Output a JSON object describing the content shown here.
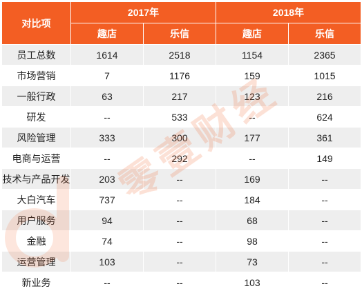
{
  "table": {
    "corner_label": "对比项",
    "years": [
      "2017年",
      "2018年"
    ],
    "subheaders": [
      "趣店",
      "乐信",
      "趣店",
      "乐信"
    ],
    "rows": [
      [
        "员工总数",
        "1614",
        "2518",
        "1154",
        "2365"
      ],
      [
        "市场营销",
        "7",
        "1176",
        "159",
        "1015"
      ],
      [
        "一般行政",
        "63",
        "217",
        "123",
        "216"
      ],
      [
        "研发",
        "--",
        "533",
        "--",
        "624"
      ],
      [
        "风险管理",
        "333",
        "300",
        "177",
        "361"
      ],
      [
        "电商与运营",
        "--",
        "292",
        "--",
        "149"
      ],
      [
        "技术与产品开发",
        "203",
        "--",
        "169",
        "--"
      ],
      [
        "大白汽车",
        "737",
        "--",
        "184",
        "--"
      ],
      [
        "用户服务",
        "94",
        "--",
        "68",
        "--"
      ],
      [
        "金融",
        "74",
        "--",
        "98",
        "--"
      ],
      [
        "运营管理",
        "103",
        "--",
        "73",
        "--"
      ],
      [
        "新业务",
        "--",
        "--",
        "103",
        "--"
      ]
    ]
  },
  "watermark": {
    "text": "零壹财经",
    "color": "#f35e23"
  }
}
